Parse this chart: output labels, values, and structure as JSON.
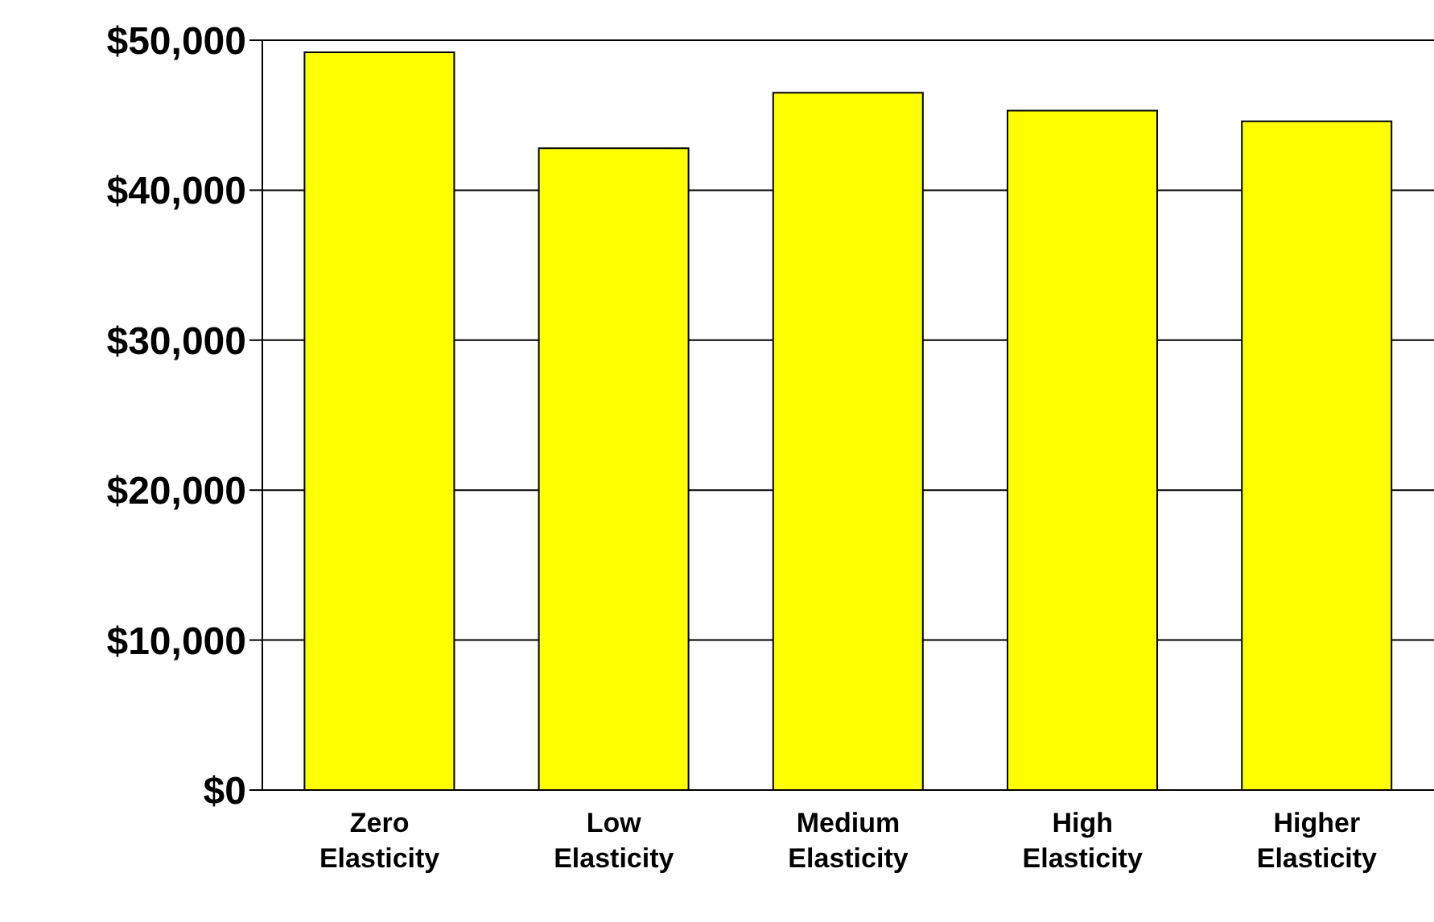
{
  "chart_data": {
    "type": "bar",
    "categories": [
      "Zero Elasticity",
      "Low Elasticity",
      "Medium Elasticity",
      "High Elasticity",
      "Higher Elasticity"
    ],
    "values": [
      49200,
      42800,
      46500,
      45300,
      44600
    ],
    "color": "#ffff00",
    "ylim": [
      0,
      50000
    ],
    "yticks": [
      {
        "value": 0,
        "label": "$0"
      },
      {
        "value": 10000,
        "label": "$10,000"
      },
      {
        "value": 20000,
        "label": "$20,000"
      },
      {
        "value": 30000,
        "label": "$30,000"
      },
      {
        "value": 40000,
        "label": "$40,000"
      },
      {
        "value": 50000,
        "label": "$50,000"
      }
    ],
    "grid": "y",
    "legend": false
  }
}
